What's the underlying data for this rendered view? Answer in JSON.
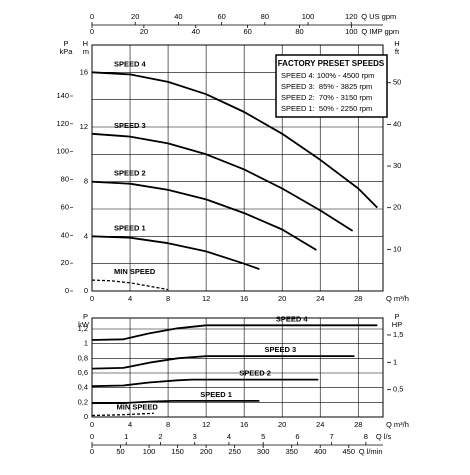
{
  "chart_data": [
    {
      "type": "line",
      "x_label": "Q m³/h",
      "xlim": [
        0,
        30.6
      ],
      "xticks": [
        0,
        4,
        8,
        12,
        16,
        20,
        24,
        28
      ],
      "y_label": "H",
      "y_unit": "m",
      "ylim": [
        0,
        18
      ],
      "yticks": [
        0,
        4,
        8,
        12,
        16
      ],
      "minor_yticks": [
        2,
        6,
        10,
        14
      ],
      "grid": true,
      "left_axis": {
        "label": "P",
        "unit": "kPa",
        "lim": [
          0,
          176.6
        ],
        "ticks": [
          0,
          20,
          40,
          60,
          80,
          100,
          120,
          140
        ]
      },
      "right_axis": {
        "label": "H",
        "unit": "ft",
        "lim": [
          0,
          59.06
        ],
        "ticks": [
          10,
          20,
          30,
          40,
          50
        ]
      },
      "top_axes": [
        {
          "label": "Q US gpm",
          "lim": [
            0,
            134.7
          ],
          "ticks": [
            0,
            20,
            40,
            60,
            80,
            100,
            120
          ]
        },
        {
          "label": "Q IMP gpm",
          "lim": [
            0,
            112.2
          ],
          "ticks": [
            0,
            20,
            40,
            60,
            80,
            100
          ]
        }
      ],
      "series": [
        {
          "name": "SPEED 4",
          "color": "#000000",
          "x": [
            0,
            4,
            8,
            12,
            16,
            20,
            24,
            28,
            30
          ],
          "values": [
            16,
            15.85,
            15.3,
            14.4,
            13.1,
            11.5,
            9.6,
            7.5,
            6.1
          ]
        },
        {
          "name": "SPEED 3",
          "color": "#000000",
          "x": [
            0,
            4,
            8,
            12,
            16,
            20,
            24,
            27.4
          ],
          "values": [
            11.5,
            11.3,
            10.8,
            10.0,
            8.9,
            7.5,
            5.9,
            4.4
          ]
        },
        {
          "name": "SPEED 2",
          "color": "#000000",
          "x": [
            0,
            4,
            8,
            12,
            16,
            20,
            23.6
          ],
          "values": [
            8,
            7.85,
            7.4,
            6.7,
            5.7,
            4.5,
            3.0
          ]
        },
        {
          "name": "SPEED 1",
          "color": "#000000",
          "x": [
            0,
            4,
            8,
            12,
            16,
            17.6
          ],
          "values": [
            4,
            3.9,
            3.5,
            2.9,
            2.0,
            1.6
          ]
        },
        {
          "name": "MIN SPEED",
          "color": "#000000",
          "dashed": true,
          "x": [
            0,
            2,
            4,
            6,
            8
          ],
          "values": [
            0.8,
            0.75,
            0.6,
            0.35,
            0.1
          ]
        }
      ],
      "legend": {
        "title": "FACTORY PRESET SPEEDS",
        "entries": [
          "SPEED 4: 100% - 4500 rpm",
          "SPEED 3:  85% - 3825 rpm",
          "SPEED 2:  70% - 3150 rpm",
          "SPEED 1:  50% - 2250 rpm"
        ]
      }
    },
    {
      "type": "line",
      "x_label": "Q m³/h",
      "xlim": [
        0,
        30.6
      ],
      "xticks": [
        0,
        4,
        8,
        12,
        16,
        20,
        24,
        28
      ],
      "y_label": "P",
      "y_unit": "kW",
      "ylim": [
        0,
        1.35
      ],
      "yticks": [
        0,
        {
          "value": 0.2,
          "label": "0,2"
        },
        {
          "value": 0.4,
          "label": "0,4"
        },
        {
          "value": 0.6,
          "label": "0,6"
        },
        {
          "value": 0.8,
          "label": "0,8"
        },
        1,
        {
          "value": 1.2,
          "label": "1,2"
        }
      ],
      "grid": true,
      "right_axis": {
        "label": "P",
        "unit": "HP",
        "lim": [
          0,
          1.81
        ],
        "ticks": [
          {
            "value": 0.5,
            "label": "0,5"
          },
          1,
          {
            "value": 1.5,
            "label": "1,5"
          }
        ]
      },
      "bottom_axes": [
        {
          "label": "Q l/s",
          "lim": [
            0,
            8.5
          ],
          "ticks": [
            0,
            1,
            2,
            3,
            4,
            5,
            6,
            7,
            8
          ]
        },
        {
          "label": "Q l/min",
          "lim": [
            0,
            510
          ],
          "ticks": [
            0,
            50,
            100,
            150,
            200,
            250,
            300,
            350,
            400,
            450
          ]
        }
      ],
      "series": [
        {
          "name": "SPEED 4",
          "color": "#000000",
          "x": [
            0,
            3.3,
            6,
            9,
            12,
            30
          ],
          "values": [
            1.05,
            1.06,
            1.14,
            1.21,
            1.25,
            1.25
          ]
        },
        {
          "name": "SPEED 3",
          "color": "#000000",
          "x": [
            0,
            3.3,
            6,
            9,
            12,
            27.6
          ],
          "values": [
            0.66,
            0.67,
            0.74,
            0.8,
            0.83,
            0.83
          ]
        },
        {
          "name": "SPEED 2",
          "color": "#000000",
          "x": [
            0,
            3.3,
            6,
            9,
            10.5,
            23.8
          ],
          "values": [
            0.42,
            0.43,
            0.47,
            0.5,
            0.51,
            0.51
          ]
        },
        {
          "name": "SPEED 1",
          "color": "#000000",
          "x": [
            0,
            3.3,
            6,
            8.5,
            17.6
          ],
          "values": [
            0.19,
            0.19,
            0.21,
            0.22,
            0.22
          ]
        },
        {
          "name": "MIN SPEED",
          "color": "#000000",
          "dashed": true,
          "x": [
            0,
            3,
            6.5
          ],
          "values": [
            0.02,
            0.03,
            0.05
          ]
        }
      ]
    }
  ]
}
